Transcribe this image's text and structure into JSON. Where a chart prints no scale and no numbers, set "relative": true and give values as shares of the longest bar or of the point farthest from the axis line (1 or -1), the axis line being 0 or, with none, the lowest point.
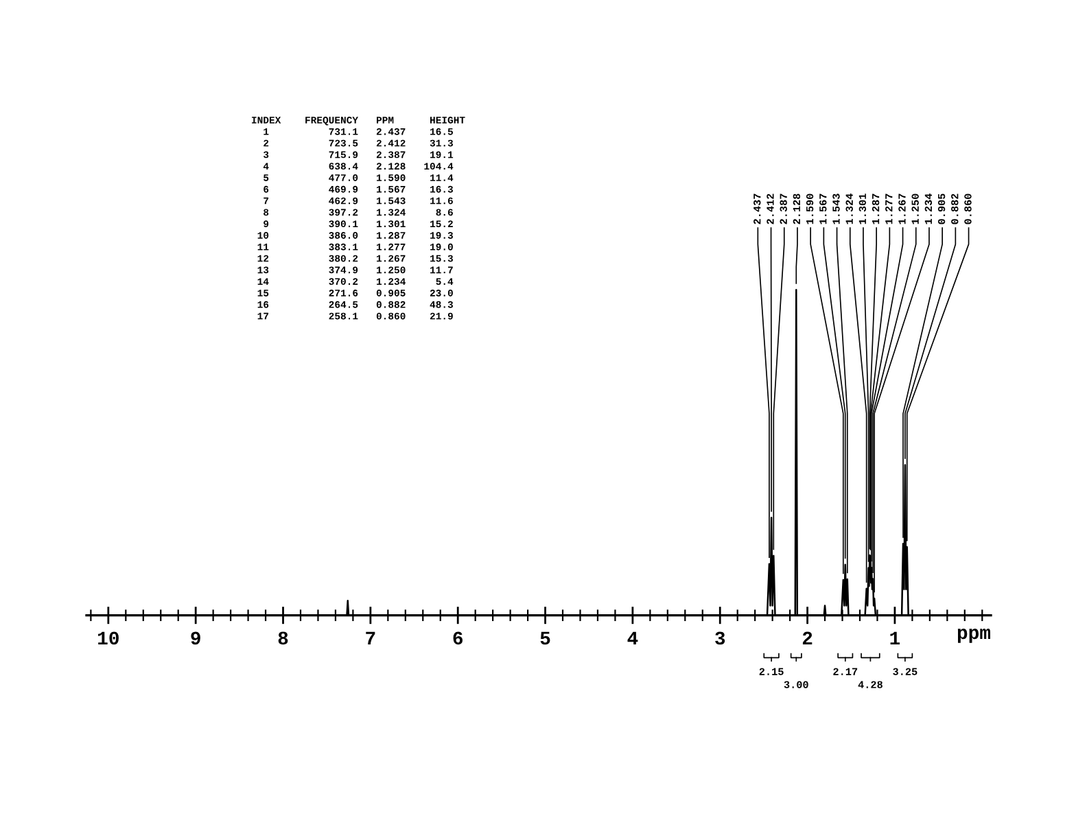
{
  "chart_data": {
    "type": "line",
    "relative": true,
    "xlabel": "ppm",
    "xlim": [
      10.25,
      -0.1
    ],
    "xticks": [
      10,
      9,
      8,
      7,
      6,
      5,
      4,
      3,
      2,
      1
    ],
    "grid": false,
    "legend": false,
    "series": [
      {
        "color": "#000000",
        "x": [
          10.25,
          7.27,
          7.26,
          7.25,
          2.46,
          2.437,
          2.425,
          2.412,
          2.4,
          2.387,
          2.37,
          2.14,
          2.128,
          2.116,
          1.81,
          1.8,
          1.79,
          1.61,
          1.59,
          1.578,
          1.567,
          1.555,
          1.543,
          1.53,
          1.34,
          1.324,
          1.312,
          1.301,
          1.294,
          1.287,
          1.282,
          1.277,
          1.272,
          1.267,
          1.259,
          1.25,
          1.242,
          1.234,
          1.22,
          0.92,
          0.905,
          0.894,
          0.882,
          0.871,
          0.86,
          0.845,
          -0.1
        ],
        "values": [
          0,
          0,
          0.045,
          0,
          0,
          0.158,
          0.03,
          0.3,
          0.03,
          0.183,
          0,
          0,
          1,
          0,
          0,
          0.03,
          0,
          0,
          0.109,
          0.03,
          0.156,
          0.03,
          0.111,
          0,
          0,
          0.082,
          0.03,
          0.146,
          0.09,
          0.185,
          0.15,
          0.182,
          0.1,
          0.147,
          0.08,
          0.112,
          0.03,
          0.052,
          0,
          0,
          0.22,
          0.08,
          0.462,
          0.08,
          0.21,
          0,
          0
        ]
      }
    ],
    "annotations": [
      {
        "text": "2.437",
        "x": 2.437,
        "y": 0.158
      },
      {
        "text": "2.412",
        "x": 2.412,
        "y": 0.3
      },
      {
        "text": "2.387",
        "x": 2.387,
        "y": 0.183
      },
      {
        "text": "2.128",
        "x": 2.128,
        "y": 1
      },
      {
        "text": "1.590",
        "x": 1.59,
        "y": 0.109
      },
      {
        "text": "1.567",
        "x": 1.567,
        "y": 0.156
      },
      {
        "text": "1.543",
        "x": 1.543,
        "y": 0.111
      },
      {
        "text": "1.324",
        "x": 1.324,
        "y": 0.082
      },
      {
        "text": "1.301",
        "x": 1.301,
        "y": 0.146
      },
      {
        "text": "1.287",
        "x": 1.287,
        "y": 0.185
      },
      {
        "text": "1.277",
        "x": 1.277,
        "y": 0.182
      },
      {
        "text": "1.267",
        "x": 1.267,
        "y": 0.147
      },
      {
        "text": "1.250",
        "x": 1.25,
        "y": 0.112
      },
      {
        "text": "1.234",
        "x": 1.234,
        "y": 0.052
      },
      {
        "text": "0.905",
        "x": 0.905,
        "y": 0.22
      },
      {
        "text": "0.882",
        "x": 0.882,
        "y": 0.462
      },
      {
        "text": "0.860",
        "x": 0.86,
        "y": 0.21
      },
      "INDEX    FREQUENCY   PPM      HEIGHT",
      "  1          731.1   2.437    16.5",
      "  2          723.5   2.412    31.3",
      "  3          715.9   2.387    19.1",
      "  4          638.4   2.128   104.4",
      "  5          477.0   1.590    11.4",
      "  6          469.9   1.567    16.3",
      "  7          462.9   1.543    11.6",
      "  8          397.2   1.324     8.6",
      "  9          390.1   1.301    15.2",
      " 10          386.0   1.287    19.3",
      " 11          383.1   1.277    19.0",
      " 12          380.2   1.267    15.3",
      " 13          374.9   1.250    11.7",
      " 14          370.2   1.234     5.4",
      " 15          271.6   0.905    23.0",
      " 16          264.5   0.882    48.3",
      " 17          258.1   0.860    21.9",
      "2.15",
      "3.00",
      "2.17",
      "4.28",
      "3.25"
    ]
  }
}
